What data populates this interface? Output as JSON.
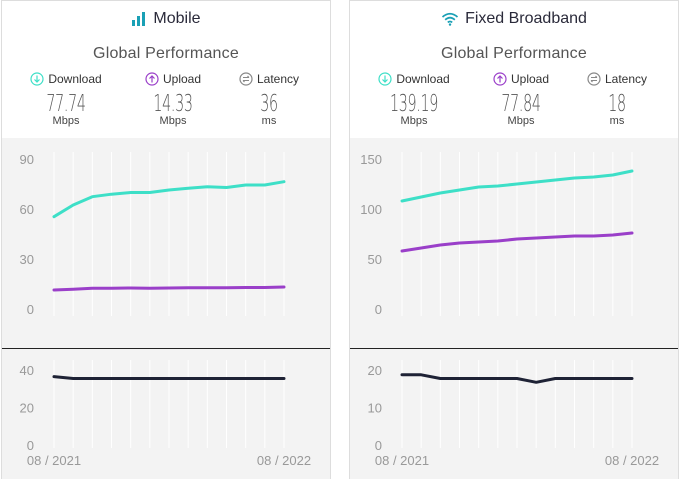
{
  "colors": {
    "download": "#3ddfc7",
    "upload": "#9a3fc9",
    "latency": "#1e2235",
    "grid": "#ffffff",
    "tick": "#999999",
    "header_icon": "#1aa0b5"
  },
  "panels": [
    {
      "title": "Mobile",
      "icon": "signal-bars-icon",
      "subtitle": "Global Performance",
      "metrics": [
        {
          "label": "Download",
          "value": "77.74",
          "unit": "Mbps"
        },
        {
          "label": "Upload",
          "value": "14.33",
          "unit": "Mbps"
        },
        {
          "label": "Latency",
          "value": "36",
          "unit": "ms"
        }
      ]
    },
    {
      "title": "Fixed Broadband",
      "icon": "wifi-icon",
      "subtitle": "Global Performance",
      "metrics": [
        {
          "label": "Download",
          "value": "139.19",
          "unit": "Mbps"
        },
        {
          "label": "Upload",
          "value": "77.84",
          "unit": "Mbps"
        },
        {
          "label": "Latency",
          "value": "18",
          "unit": "ms"
        }
      ]
    }
  ],
  "chart_data": [
    {
      "type": "line",
      "title": "Mobile",
      "x": [
        "08/2021",
        "09/2021",
        "10/2021",
        "11/2021",
        "12/2021",
        "01/2022",
        "02/2022",
        "03/2022",
        "04/2022",
        "05/2022",
        "06/2022",
        "07/2022",
        "08/2022"
      ],
      "x_tick_labels": [
        "08 / 2021",
        "08 / 2022"
      ],
      "speed": {
        "ylim": [
          0,
          90
        ],
        "yticks": [
          0,
          30,
          60,
          90
        ],
        "series": [
          {
            "name": "Download",
            "values": [
              56,
              63,
              68,
              69.5,
              70.5,
              70.5,
              72,
              73,
              74,
              73.5,
              75,
              75,
              77
            ]
          },
          {
            "name": "Upload",
            "values": [
              12,
              12.5,
              13,
              13.1,
              13.2,
              13,
              13.2,
              13.3,
              13.4,
              13.4,
              13.5,
              13.5,
              13.8
            ]
          }
        ]
      },
      "latency": {
        "ylim": [
          0,
          40
        ],
        "yticks": [
          0,
          20,
          40
        ],
        "series": [
          {
            "name": "Latency",
            "values": [
              37,
              36,
              36,
              36,
              36,
              36,
              36,
              36,
              36,
              36,
              36,
              36,
              36
            ]
          }
        ]
      }
    },
    {
      "type": "line",
      "title": "Fixed Broadband",
      "x": [
        "08/2021",
        "09/2021",
        "10/2021",
        "11/2021",
        "12/2021",
        "01/2022",
        "02/2022",
        "03/2022",
        "04/2022",
        "05/2022",
        "06/2022",
        "07/2022",
        "08/2022"
      ],
      "x_tick_labels": [
        "08 / 2021",
        "08 / 2022"
      ],
      "speed": {
        "ylim": [
          0,
          150
        ],
        "yticks": [
          0,
          50,
          100,
          150
        ],
        "series": [
          {
            "name": "Download",
            "values": [
              109,
              113,
              117,
              120,
              123,
              124,
              126,
              128,
              130,
              132,
              133,
              135,
              139
            ]
          },
          {
            "name": "Upload",
            "values": [
              59,
              62,
              65,
              67,
              68,
              69,
              71,
              72,
              73,
              74,
              74,
              75,
              77
            ]
          }
        ]
      },
      "latency": {
        "ylim": [
          0,
          20
        ],
        "yticks": [
          0,
          10,
          20
        ],
        "series": [
          {
            "name": "Latency",
            "values": [
              19,
              19,
              18,
              18,
              18,
              18,
              18,
              17,
              18,
              18,
              18,
              18,
              18
            ]
          }
        ]
      }
    }
  ]
}
